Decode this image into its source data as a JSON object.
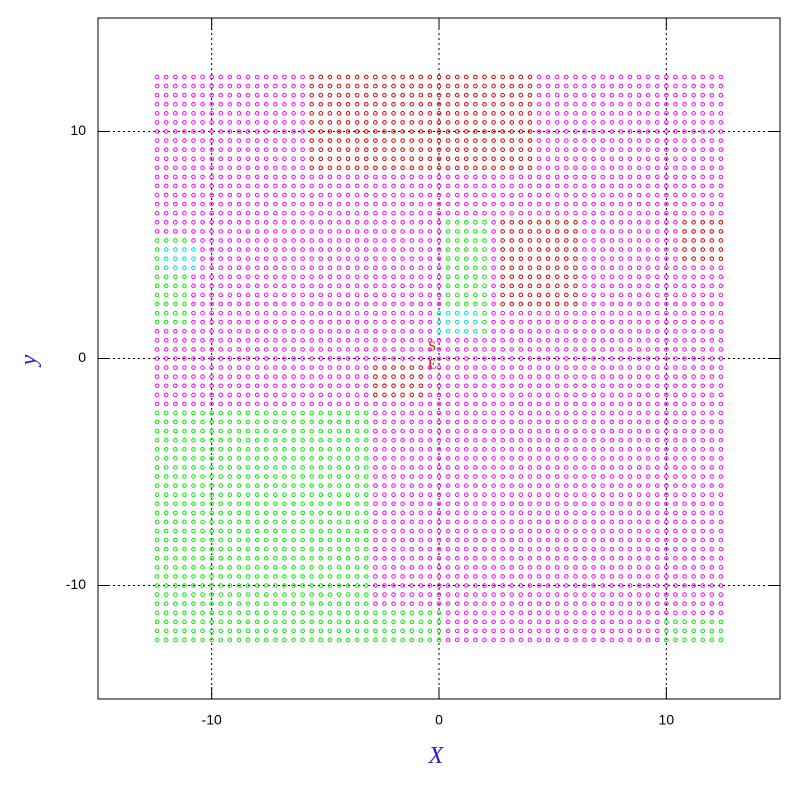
{
  "chart_data": {
    "type": "scatter",
    "x_label": "X",
    "y_label": "y",
    "xlim": [
      -15,
      15
    ],
    "ylim": [
      -15,
      15
    ],
    "xticks": [
      -10,
      0,
      10
    ],
    "yticks": [
      -10,
      0,
      10
    ],
    "grid": true,
    "x": [
      -12.4,
      -12,
      -11.6,
      -11.2,
      -10.8,
      -10.4,
      -10,
      -9.6,
      -9.2,
      -8.8,
      -8.4,
      -8,
      -7.6,
      -7.2,
      -6.8,
      -6.4,
      -6,
      -5.6,
      -5.2,
      -4.8,
      -4.4,
      -4,
      -3.6,
      -3.2,
      -2.8,
      -2.4,
      -2,
      -1.6,
      -1.2,
      -0.8,
      -0.4,
      0,
      0.4,
      0.8,
      1.2,
      1.6,
      2,
      2.4,
      2.8,
      3.2,
      3.6,
      4,
      4.4,
      4.8,
      5.2,
      5.6,
      6,
      6.4,
      6.8,
      7.2,
      7.6,
      8,
      8.4,
      8.8,
      9.2,
      9.6,
      10,
      10.4,
      10.8,
      11.2,
      11.6,
      12,
      12.4
    ],
    "y": [
      -12.4,
      -12,
      -11.6,
      -11.2,
      -10.8,
      -10.4,
      -10,
      -9.6,
      -9.2,
      -8.8,
      -8.4,
      -8,
      -7.6,
      -7.2,
      -6.8,
      -6.4,
      -6,
      -5.6,
      -5.2,
      -4.8,
      -4.4,
      -4,
      -3.6,
      -3.2,
      -2.8,
      -2.4,
      -2,
      -1.6,
      -1.2,
      -0.8,
      -0.4,
      0,
      0.4,
      0.8,
      1.2,
      1.6,
      2,
      2.4,
      2.8,
      3.2,
      3.6,
      4,
      4.4,
      4.8,
      5.2,
      5.6,
      6,
      6.4,
      6.8,
      7.2,
      7.6,
      8,
      8.4,
      8.8,
      9.2,
      9.6,
      10,
      10.4,
      10.8,
      11.2,
      11.6,
      12,
      12.4
    ],
    "color": "#ff00ff",
    "regions": [
      {
        "color": "#00ee00",
        "xlim": [
          -12.4,
          -3.2
        ],
        "ylim": [
          -12.4,
          -2.4
        ]
      },
      {
        "color": "#00ee00",
        "xlim": [
          -12.4,
          0
        ],
        "ylim": [
          -12.4,
          -11
        ]
      },
      {
        "color": "#00ee00",
        "xlim": [
          -12.4,
          -11
        ],
        "ylim": [
          1.6,
          5.2
        ]
      },
      {
        "color": "#00ee00",
        "xlim": [
          0.4,
          2
        ],
        "ylim": [
          1,
          6
        ]
      },
      {
        "color": "#00ee00",
        "xlim": [
          10,
          12.4
        ],
        "ylim": [
          -12.4,
          -11.6
        ]
      },
      {
        "color": "#00dddd",
        "xlim": [
          -12,
          -10.8
        ],
        "ylim": [
          4,
          5
        ]
      },
      {
        "color": "#00dddd",
        "xlim": [
          0,
          1.6
        ],
        "ylim": [
          1.2,
          2
        ]
      },
      {
        "color": "#dd0000",
        "xlim": [
          -5.6,
          4
        ],
        "ylim": [
          8.4,
          12.4
        ]
      },
      {
        "color": "#dd0000",
        "xlim": [
          2.8,
          6
        ],
        "ylim": [
          2.4,
          6
        ]
      },
      {
        "color": "#dd0000",
        "xlim": [
          10.8,
          12.4
        ],
        "ylim": [
          4.4,
          6
        ]
      },
      {
        "color": "#dd0000",
        "xlim": [
          -2.8,
          -0.8
        ],
        "ylim": [
          -1.6,
          -0.4
        ]
      }
    ],
    "annotations": [
      {
        "text": "S",
        "x": -0.3,
        "y": 0.5
      },
      {
        "text": "E",
        "x": -0.3,
        "y": -0.3
      }
    ]
  }
}
